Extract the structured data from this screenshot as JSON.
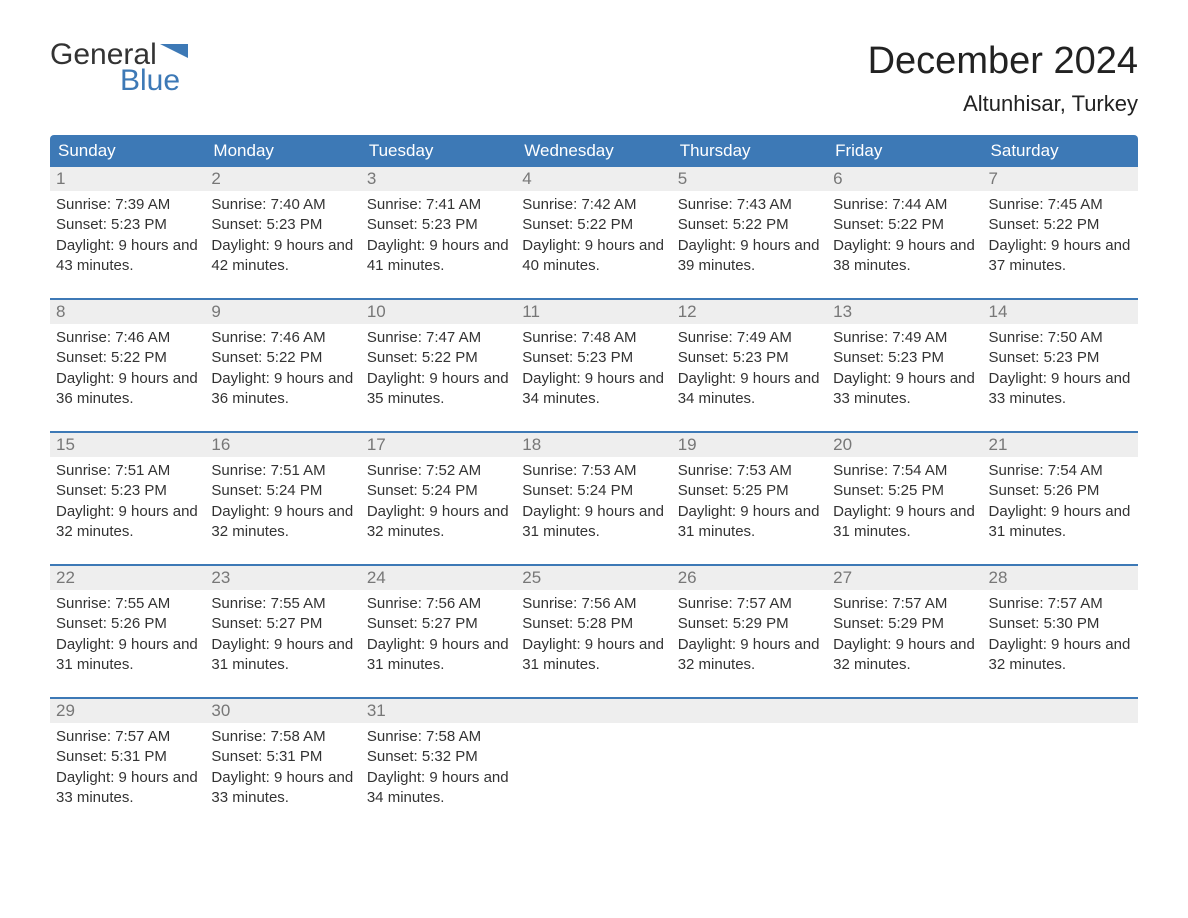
{
  "logo": {
    "word1": "General",
    "word2": "Blue"
  },
  "title": "December 2024",
  "location": "Altunhisar, Turkey",
  "colors": {
    "header_bg": "#3d79b6",
    "header_text": "#ffffff",
    "daynum_bg": "#eeeeee",
    "daynum_text": "#777777",
    "body_text": "#333333",
    "week_border": "#3d79b6",
    "logo_gray": "#333333",
    "logo_blue": "#3d79b6",
    "page_bg": "#ffffff"
  },
  "typography": {
    "title_fontsize": 38,
    "location_fontsize": 22,
    "header_fontsize": 17,
    "daynum_fontsize": 17,
    "body_fontsize": 15,
    "logo_fontsize": 30
  },
  "day_names": [
    "Sunday",
    "Monday",
    "Tuesday",
    "Wednesday",
    "Thursday",
    "Friday",
    "Saturday"
  ],
  "labels": {
    "sunrise": "Sunrise:",
    "sunset": "Sunset:",
    "daylight": "Daylight:"
  },
  "weeks": [
    [
      {
        "n": "1",
        "sunrise": "7:39 AM",
        "sunset": "5:23 PM",
        "daylight": "9 hours and 43 minutes."
      },
      {
        "n": "2",
        "sunrise": "7:40 AM",
        "sunset": "5:23 PM",
        "daylight": "9 hours and 42 minutes."
      },
      {
        "n": "3",
        "sunrise": "7:41 AM",
        "sunset": "5:23 PM",
        "daylight": "9 hours and 41 minutes."
      },
      {
        "n": "4",
        "sunrise": "7:42 AM",
        "sunset": "5:22 PM",
        "daylight": "9 hours and 40 minutes."
      },
      {
        "n": "5",
        "sunrise": "7:43 AM",
        "sunset": "5:22 PM",
        "daylight": "9 hours and 39 minutes."
      },
      {
        "n": "6",
        "sunrise": "7:44 AM",
        "sunset": "5:22 PM",
        "daylight": "9 hours and 38 minutes."
      },
      {
        "n": "7",
        "sunrise": "7:45 AM",
        "sunset": "5:22 PM",
        "daylight": "9 hours and 37 minutes."
      }
    ],
    [
      {
        "n": "8",
        "sunrise": "7:46 AM",
        "sunset": "5:22 PM",
        "daylight": "9 hours and 36 minutes."
      },
      {
        "n": "9",
        "sunrise": "7:46 AM",
        "sunset": "5:22 PM",
        "daylight": "9 hours and 36 minutes."
      },
      {
        "n": "10",
        "sunrise": "7:47 AM",
        "sunset": "5:22 PM",
        "daylight": "9 hours and 35 minutes."
      },
      {
        "n": "11",
        "sunrise": "7:48 AM",
        "sunset": "5:23 PM",
        "daylight": "9 hours and 34 minutes."
      },
      {
        "n": "12",
        "sunrise": "7:49 AM",
        "sunset": "5:23 PM",
        "daylight": "9 hours and 34 minutes."
      },
      {
        "n": "13",
        "sunrise": "7:49 AM",
        "sunset": "5:23 PM",
        "daylight": "9 hours and 33 minutes."
      },
      {
        "n": "14",
        "sunrise": "7:50 AM",
        "sunset": "5:23 PM",
        "daylight": "9 hours and 33 minutes."
      }
    ],
    [
      {
        "n": "15",
        "sunrise": "7:51 AM",
        "sunset": "5:23 PM",
        "daylight": "9 hours and 32 minutes."
      },
      {
        "n": "16",
        "sunrise": "7:51 AM",
        "sunset": "5:24 PM",
        "daylight": "9 hours and 32 minutes."
      },
      {
        "n": "17",
        "sunrise": "7:52 AM",
        "sunset": "5:24 PM",
        "daylight": "9 hours and 32 minutes."
      },
      {
        "n": "18",
        "sunrise": "7:53 AM",
        "sunset": "5:24 PM",
        "daylight": "9 hours and 31 minutes."
      },
      {
        "n": "19",
        "sunrise": "7:53 AM",
        "sunset": "5:25 PM",
        "daylight": "9 hours and 31 minutes."
      },
      {
        "n": "20",
        "sunrise": "7:54 AM",
        "sunset": "5:25 PM",
        "daylight": "9 hours and 31 minutes."
      },
      {
        "n": "21",
        "sunrise": "7:54 AM",
        "sunset": "5:26 PM",
        "daylight": "9 hours and 31 minutes."
      }
    ],
    [
      {
        "n": "22",
        "sunrise": "7:55 AM",
        "sunset": "5:26 PM",
        "daylight": "9 hours and 31 minutes."
      },
      {
        "n": "23",
        "sunrise": "7:55 AM",
        "sunset": "5:27 PM",
        "daylight": "9 hours and 31 minutes."
      },
      {
        "n": "24",
        "sunrise": "7:56 AM",
        "sunset": "5:27 PM",
        "daylight": "9 hours and 31 minutes."
      },
      {
        "n": "25",
        "sunrise": "7:56 AM",
        "sunset": "5:28 PM",
        "daylight": "9 hours and 31 minutes."
      },
      {
        "n": "26",
        "sunrise": "7:57 AM",
        "sunset": "5:29 PM",
        "daylight": "9 hours and 32 minutes."
      },
      {
        "n": "27",
        "sunrise": "7:57 AM",
        "sunset": "5:29 PM",
        "daylight": "9 hours and 32 minutes."
      },
      {
        "n": "28",
        "sunrise": "7:57 AM",
        "sunset": "5:30 PM",
        "daylight": "9 hours and 32 minutes."
      }
    ],
    [
      {
        "n": "29",
        "sunrise": "7:57 AM",
        "sunset": "5:31 PM",
        "daylight": "9 hours and 33 minutes."
      },
      {
        "n": "30",
        "sunrise": "7:58 AM",
        "sunset": "5:31 PM",
        "daylight": "9 hours and 33 minutes."
      },
      {
        "n": "31",
        "sunrise": "7:58 AM",
        "sunset": "5:32 PM",
        "daylight": "9 hours and 34 minutes."
      },
      null,
      null,
      null,
      null
    ]
  ]
}
